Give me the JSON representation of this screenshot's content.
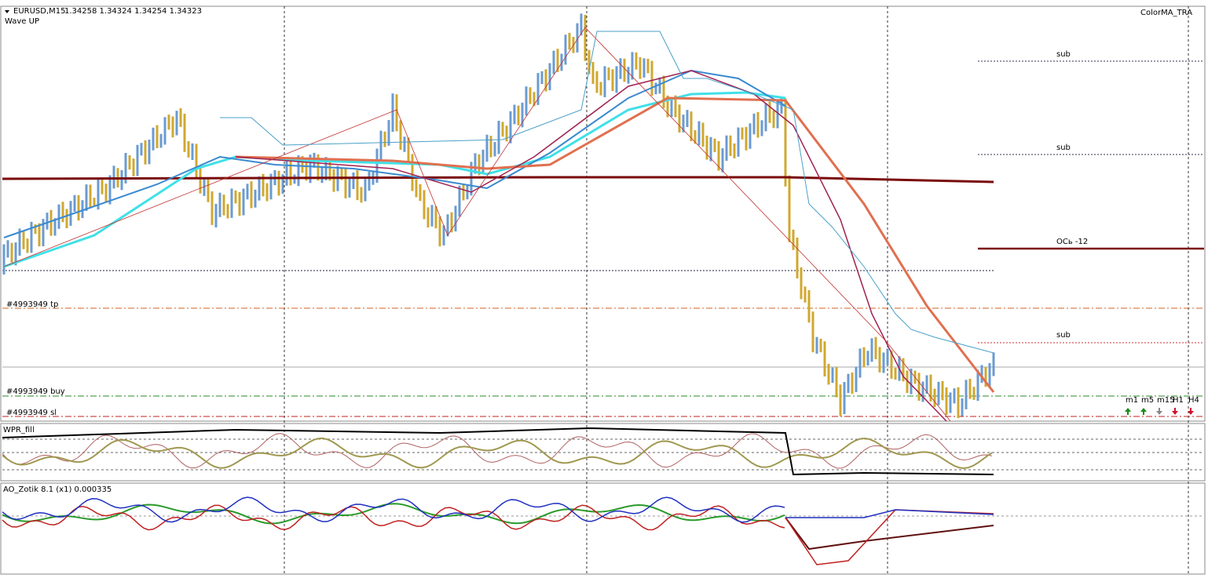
{
  "header": {
    "symbol": "EURUSD,M15",
    "quotes": "1.34258 1.34324 1.34254 1.34323",
    "indicator": "Wave UP",
    "indicator_right": "ColorMA_TRA"
  },
  "levels": [
    "sub",
    "sub",
    "ОСь -12",
    "sub"
  ],
  "orders": [
    "#4993949 tp",
    "#4993949 buy",
    "#4993949 sl"
  ],
  "timeframes": [
    "m1",
    "m5",
    "m15",
    "H1",
    "H4"
  ],
  "subwindows": {
    "wpr": "WPR_fill",
    "ao": "AO_Zotik 8.1 (x1) 0.000335"
  }
}
